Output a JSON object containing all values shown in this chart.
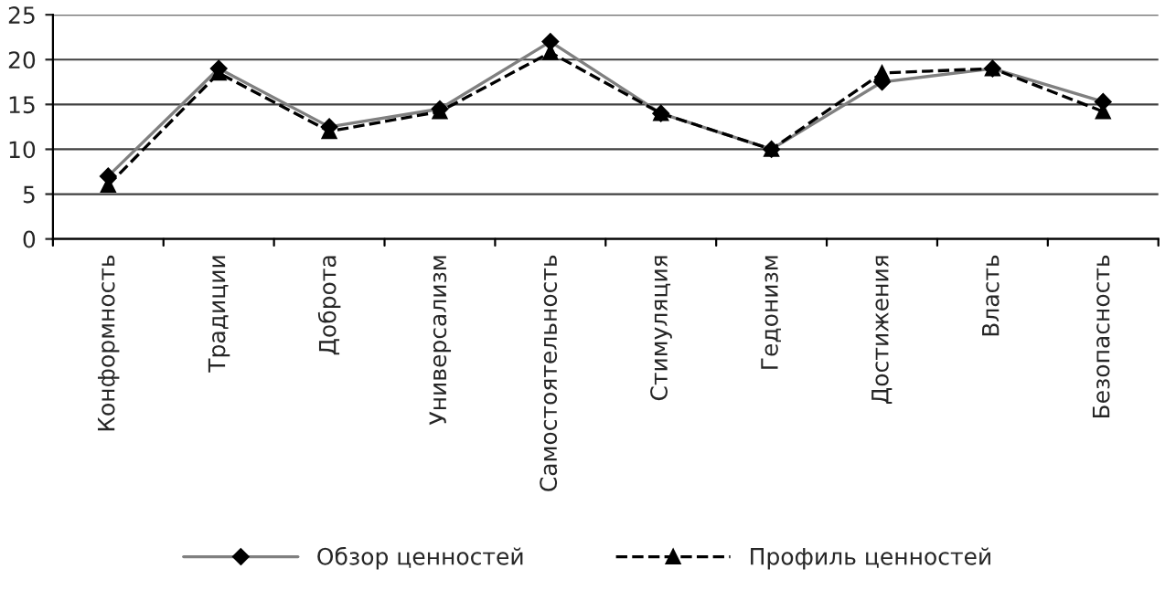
{
  "chart_data": {
    "type": "line",
    "categories": [
      "Конформность",
      "Традиции",
      "Доброта",
      "Универсализм",
      "Самостоятельность",
      "Стимуляция",
      "Гедонизм",
      "Достижения",
      "Власть",
      "Безопасность"
    ],
    "series": [
      {
        "name": "Обзор ценностей",
        "color": "#808080",
        "marker": "diamond",
        "line_style": "solid",
        "values": [
          7,
          19,
          12.5,
          14.5,
          22,
          14,
          10,
          17.5,
          19,
          15.3
        ]
      },
      {
        "name": "Профиль ценностей",
        "color": "#000000",
        "marker": "triangle",
        "line_style": "dashed",
        "values": [
          6,
          18.5,
          12,
          14.2,
          20.8,
          14,
          10,
          18.5,
          19,
          14.2
        ]
      }
    ],
    "ylim": [
      0,
      25
    ],
    "yticks": [
      0,
      5,
      10,
      15,
      20,
      25
    ],
    "grid": "y",
    "legend": "bottom"
  }
}
